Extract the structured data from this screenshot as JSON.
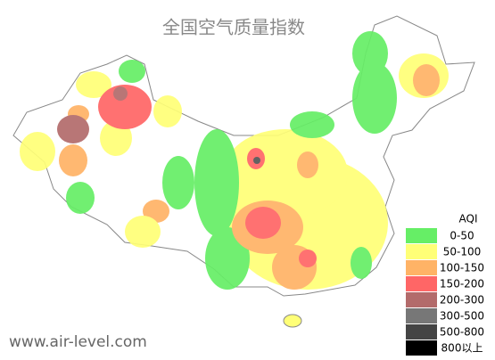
{
  "header": {
    "title": "全国空气质量指数"
  },
  "legend": {
    "title": "AQI",
    "items": [
      {
        "label": "0-50",
        "color": "#66ee66"
      },
      {
        "label": "50-100",
        "color": "#ffff77"
      },
      {
        "label": "100-150",
        "color": "#ffb366"
      },
      {
        "label": "150-200",
        "color": "#ff6666"
      },
      {
        "label": "200-300",
        "color": "#b36b6b"
      },
      {
        "label": "300-500",
        "color": "#777777"
      },
      {
        "label": "500-800",
        "color": "#444444"
      },
      {
        "label": "800以上",
        "color": "#000000"
      }
    ]
  },
  "footer": {
    "site": "www.air-level.com"
  }
}
